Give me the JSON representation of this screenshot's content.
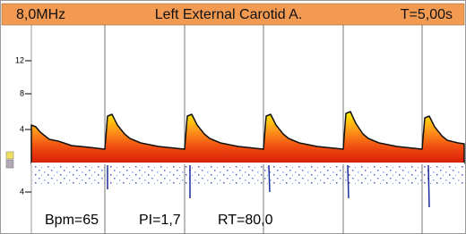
{
  "header": {
    "frequency": "8,0MHz",
    "vessel": "Left External Carotid A.",
    "time": "T=5,00s"
  },
  "scale_labels": [
    "12",
    "8",
    "4",
    "4"
  ],
  "footer": {
    "bpm": "Bpm=65",
    "pi": "PI=1,7",
    "rt": "RT=80,0"
  }
}
